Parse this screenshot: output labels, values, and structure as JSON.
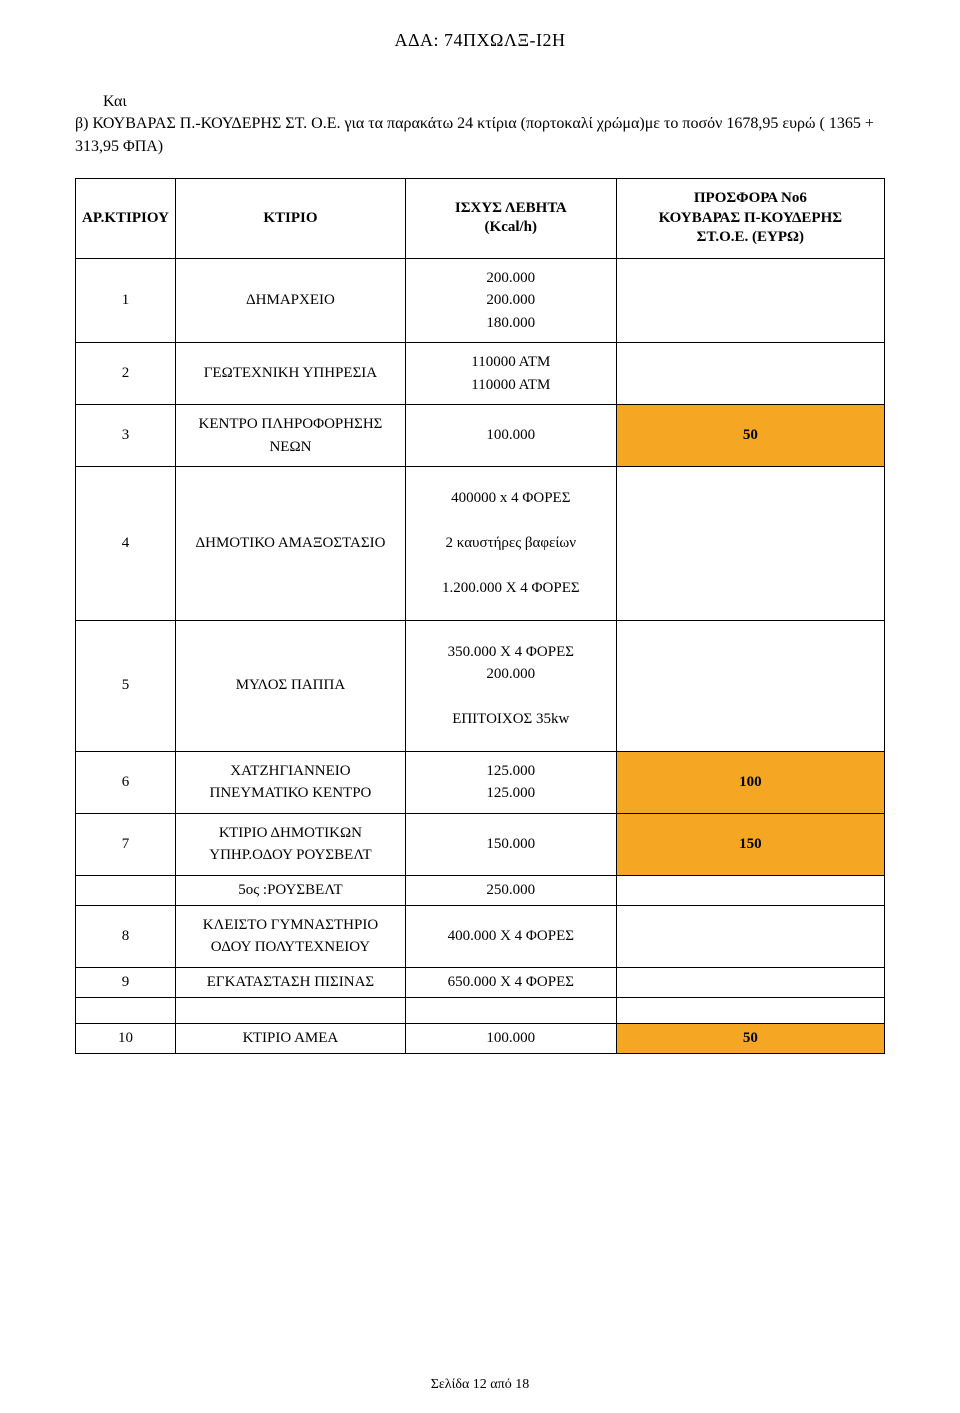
{
  "document": {
    "header_code": "ΑΔΑ: 74ΠΧΩΛΞ-Ι2Η",
    "intro_line1": "Και",
    "intro_line2": "β) ΚΟΥΒΑΡΑΣ Π.-ΚΟΥΔΕΡΗΣ ΣΤ. Ο.Ε. για τα παρακάτω 24 κτίρια (πορτοκαλί χρώμα)με το ποσόν 1678,95 ευρώ ( 1365 + 313,95 ΦΠΑ)",
    "page_footer": "Σελίδα 12 από 18"
  },
  "table": {
    "headers": {
      "col1": "ΑΡ.ΚΤΙΡΙΟΥ",
      "col2": "ΚΤΙΡΙΟ",
      "col3_l1": "ΙΣΧΥΣ ΛΕΒΗΤΑ",
      "col3_l2": "(Kcal/h)",
      "col4_l1": "ΠΡΟΣΦΟΡΑ Νο6",
      "col4_l2": "ΚΟΥΒΑΡΑΣ Π-ΚΟΥΔΕΡΗΣ",
      "col4_l3": "ΣΤ.Ο.Ε. (ΕΥΡΩ)"
    },
    "rows": {
      "r1_num": "1",
      "r1_building": "ΔΗΜΑΡΧΕΙΟ",
      "r1_power_a": "200.000",
      "r1_power_b": "200.000",
      "r1_power_c": "180.000",
      "r2_num": "2",
      "r2_building": "ΓΕΩΤΕΧΝΙΚΗ ΥΠΗΡΕΣΙΑ",
      "r2_power_a": "110000 ΑΤΜ",
      "r2_power_b": "110000 ΑΤΜ",
      "r3_num": "3",
      "r3_building_l1": "ΚΕΝΤΡΟ ΠΛΗΡΟΦΟΡΗΣΗΣ",
      "r3_building_l2": "ΝΕΩΝ",
      "r3_power": "100.000",
      "r3_offer": "50",
      "r4_num": "4",
      "r4_building": "ΔΗΜΟΤΙΚΟ ΑΜΑΞΟΣΤΑΣΙΟ",
      "r4_power_a": "400000 x 4 ΦΟΡΕΣ",
      "r4_power_b": "2 καυστήρες βαφείων",
      "r4_power_c": "1.200.000 Χ 4 ΦΟΡΕΣ",
      "r5_num": "5",
      "r5_building": "ΜΥΛΟΣ ΠΑΠΠΑ",
      "r5_power_a": "350.000 Χ 4 ΦΟΡΕΣ",
      "r5_power_b": "200.000",
      "r5_power_c": "ΕΠΙΤΟΙΧΟΣ 35kw",
      "r6_num": "6",
      "r6_building_l1": "ΧΑΤΖΗΓΙΑΝΝΕΙΟ",
      "r6_building_l2": "ΠΝΕΥΜΑΤΙΚΟ ΚΕΝΤΡΟ",
      "r6_power_a": "125.000",
      "r6_power_b": "125.000",
      "r6_offer": "100",
      "r7_num": "7",
      "r7_building_l1": "ΚΤΙΡΙΟ ΔΗΜΟΤΙΚΩΝ",
      "r7_building_l2": "ΥΠΗΡ.ΟΔΟΥ ΡΟΥΣΒΕΛΤ",
      "r7_power": "150.000",
      "r7_offer": "150",
      "r7b_label": "5ος :ΡΟΥΣΒΕΛΤ",
      "r7b_power": "250.000",
      "r8_num": "8",
      "r8_building_l1": "ΚΛΕΙΣΤΟ ΓΥΜΝΑΣΤΗΡΙΟ",
      "r8_building_l2": "ΟΔΟΥ ΠΟΛΥΤΕΧΝΕΙΟΥ",
      "r8_power": "400.000 Χ 4 ΦΟΡΕΣ",
      "r9_num": "9",
      "r9_building": "ΕΓΚΑΤΑΣΤΑΣΗ ΠΙΣΙΝΑΣ",
      "r9_power": "650.000 Χ 4 ΦΟΡΕΣ",
      "r10_num": "10",
      "r10_building": "ΚΤΙΡΙΟ ΑΜΕΑ",
      "r10_power": "100.000",
      "r10_offer": "50"
    }
  },
  "styles": {
    "highlight_color": "#f5a623",
    "border_color": "#000000",
    "background": "#ffffff",
    "text_color": "#000000"
  }
}
